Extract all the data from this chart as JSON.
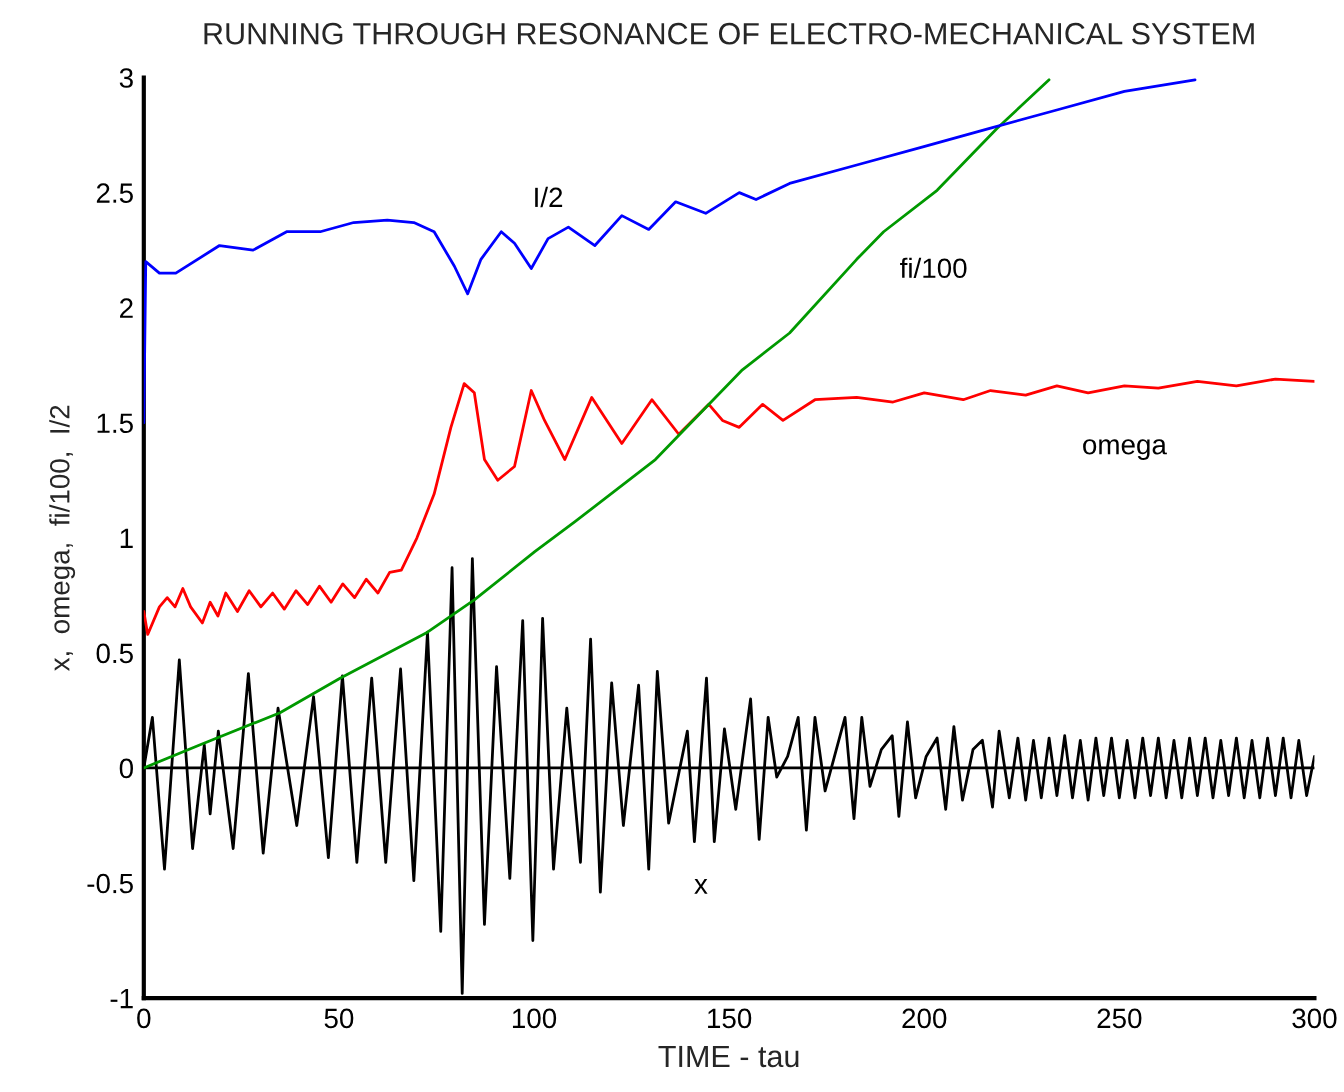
{
  "chart_data": {
    "type": "line",
    "title": "RUNNING THROUGH RESONANCE OF ELECTRO-MECHANICAL SYSTEM",
    "xlabel": "TIME - tau",
    "ylabel": "x,  omega,  fi/100,  I/2",
    "xlim": [
      0,
      300
    ],
    "xticks": [
      0,
      50,
      100,
      150,
      200,
      250,
      300
    ],
    "ylim": [
      -1,
      3
    ],
    "yticks": [
      -1,
      -0.5,
      0,
      0.5,
      1,
      1.5,
      2,
      2.5,
      3
    ],
    "grid": false,
    "legend": false,
    "ref_lines": [
      {
        "axis": "y",
        "value": 0,
        "color": "#000000"
      }
    ],
    "series": [
      {
        "name": "x",
        "color": "#000000",
        "x": [
          0,
          2.2,
          5.3,
          9.1,
          12.5,
          15.5,
          17.0,
          19.1,
          22.9,
          26.8,
          30.6,
          34.4,
          39.2,
          43.5,
          47.3,
          50.9,
          54.6,
          58.4,
          62.0,
          65.8,
          69.2,
          72.7,
          76.1,
          79.0,
          81.6,
          84.2,
          87.3,
          90.4,
          93.8,
          97.1,
          99.7,
          102.2,
          105.0,
          108.4,
          111.9,
          114.5,
          117.0,
          119.9,
          122.9,
          126.8,
          129.4,
          131.6,
          134.5,
          139.3,
          141.1,
          144.2,
          146.2,
          148.8,
          151.7,
          155.5,
          157.7,
          160.0,
          162.2,
          165.0,
          167.7,
          169.8,
          172.0,
          174.6,
          177,
          179.7,
          182.0,
          184.0,
          186.1,
          189,
          191.8,
          193.5,
          195.7,
          197.8,
          200.5,
          203.3,
          205.5,
          207.6,
          209.8,
          212.5,
          214.9,
          217.5,
          219.2,
          221.8,
          224,
          226,
          228,
          230,
          232,
          234,
          236,
          238,
          240,
          242,
          244,
          246,
          248,
          250,
          252,
          254,
          256,
          258,
          260,
          262,
          264,
          266,
          268,
          270,
          272,
          274,
          276,
          278,
          280,
          282,
          284,
          286,
          288,
          290,
          292,
          294,
          296,
          298,
          300
        ],
        "values": [
          0,
          0.22,
          -0.44,
          0.47,
          -0.35,
          0.1,
          -0.2,
          0.16,
          -0.35,
          0.41,
          -0.37,
          0.26,
          -0.25,
          0.31,
          -0.39,
          0.4,
          -0.41,
          0.39,
          -0.41,
          0.43,
          -0.49,
          0.59,
          -0.71,
          0.87,
          -0.98,
          0.91,
          -0.68,
          0.44,
          -0.48,
          0.64,
          -0.75,
          0.65,
          -0.44,
          0.26,
          -0.41,
          0.56,
          -0.54,
          0.37,
          -0.25,
          0.36,
          -0.44,
          0.42,
          -0.24,
          0.16,
          -0.32,
          0.39,
          -0.32,
          0.17,
          -0.18,
          0.3,
          -0.31,
          0.22,
          -0.04,
          0.05,
          0.22,
          -0.27,
          0.22,
          -0.1,
          0.05,
          0.22,
          -0.22,
          0.22,
          -0.08,
          0.08,
          0.14,
          -0.21,
          0.2,
          -0.13,
          0.05,
          0.13,
          -0.18,
          0.18,
          -0.14,
          0.08,
          0.12,
          -0.17,
          0.16,
          -0.13,
          0.13,
          -0.14,
          0.12,
          -0.13,
          0.13,
          -0.12,
          0.14,
          -0.13,
          0.12,
          -0.14,
          0.13,
          -0.12,
          0.13,
          -0.13,
          0.12,
          -0.13,
          0.13,
          -0.12,
          0.13,
          -0.13,
          0.12,
          -0.13,
          0.13,
          -0.12,
          0.13,
          -0.13,
          0.12,
          -0.12,
          0.13,
          -0.13,
          0.12,
          -0.13,
          0.13,
          -0.12,
          0.13,
          -0.13,
          0.12,
          -0.12,
          0.05
        ]
      },
      {
        "name": "omega",
        "color": "#ff0000",
        "x": [
          0,
          1,
          4,
          6,
          8,
          10,
          12,
          15,
          17,
          19,
          21,
          24,
          27,
          30,
          33,
          36,
          39,
          42,
          45,
          48,
          51,
          54,
          57,
          60,
          63,
          66,
          70,
          74.4,
          78.7,
          82.1,
          84.7,
          87.3,
          90.7,
          95.0,
          99.3,
          102.7,
          107.9,
          114.8,
          122.5,
          130.2,
          137.1,
          144.8,
          148.3,
          152.6,
          158.6,
          163.8,
          172,
          182.7,
          192,
          200,
          210,
          217,
          226,
          234,
          242,
          251.3,
          260,
          270,
          280,
          290,
          300
        ],
        "values": [
          0.68,
          0.58,
          0.7,
          0.74,
          0.7,
          0.78,
          0.7,
          0.63,
          0.72,
          0.66,
          0.76,
          0.68,
          0.77,
          0.7,
          0.76,
          0.69,
          0.77,
          0.71,
          0.79,
          0.72,
          0.8,
          0.74,
          0.82,
          0.76,
          0.85,
          0.86,
          1.0,
          1.19,
          1.48,
          1.67,
          1.63,
          1.34,
          1.25,
          1.31,
          1.64,
          1.51,
          1.34,
          1.61,
          1.41,
          1.6,
          1.45,
          1.58,
          1.51,
          1.48,
          1.58,
          1.51,
          1.6,
          1.61,
          1.59,
          1.63,
          1.6,
          1.64,
          1.62,
          1.66,
          1.63,
          1.66,
          1.65,
          1.68,
          1.66,
          1.69,
          1.68
        ]
      },
      {
        "name": "fi/100",
        "color": "#009900",
        "x": [
          0,
          14.3,
          34.9,
          50.3,
          72.7,
          84.7,
          100.2,
          110.5,
          131.1,
          153.4,
          165.5,
          182.7,
          189.6,
          203.3,
          218.7,
          232
        ],
        "values": [
          0,
          0.1,
          0.24,
          0.39,
          0.59,
          0.73,
          0.94,
          1.07,
          1.34,
          1.73,
          1.89,
          2.21,
          2.33,
          2.51,
          2.78,
          2.99
        ]
      },
      {
        "name": "I/2",
        "color": "#0000ff",
        "x": [
          0,
          0.5,
          4,
          8.2,
          19.4,
          28,
          36.6,
          45.2,
          53.8,
          62.4,
          69.2,
          74.4,
          79.6,
          83,
          86.4,
          91.6,
          95,
          99.3,
          103.6,
          108.8,
          115.6,
          122.5,
          129.4,
          136.3,
          144,
          152.6,
          156.9,
          165.5,
          182.7,
          199.9,
          217,
          234.2,
          251.3,
          269.4
        ],
        "values": [
          1.5,
          2.2,
          2.15,
          2.15,
          2.27,
          2.25,
          2.33,
          2.33,
          2.37,
          2.38,
          2.37,
          2.33,
          2.18,
          2.06,
          2.21,
          2.33,
          2.28,
          2.17,
          2.3,
          2.35,
          2.27,
          2.4,
          2.34,
          2.46,
          2.41,
          2.5,
          2.47,
          2.54,
          2.62,
          2.7,
          2.78,
          2.86,
          2.94,
          2.99
        ]
      }
    ]
  }
}
